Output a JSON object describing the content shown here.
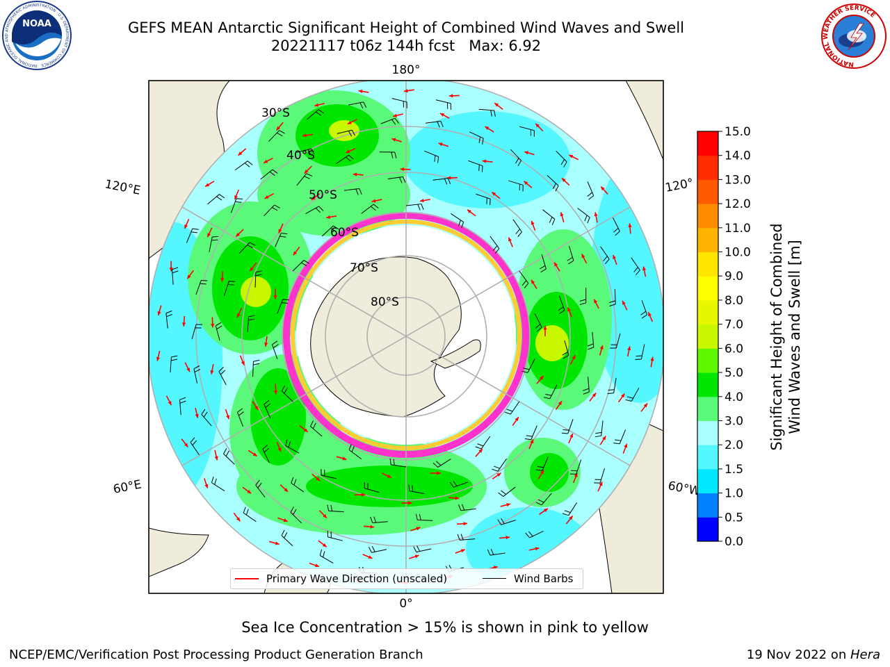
{
  "header": {
    "title_line1": "GEFS MEAN Antarctic Significant Height of Combined Wind Waves and Swell",
    "title_line2": "20221117 t06z 144h fcst   Max: 6.92"
  },
  "logos": {
    "left": {
      "icon": "noaa-logo-icon",
      "text": "NOAA",
      "ring_text": "NATIONAL OCEANIC AND ATMOSPHERIC ADMINISTRATION · U.S. DEPARTMENT OF COMMERCE"
    },
    "right": {
      "icon": "nws-logo-icon",
      "ring_text": "NATIONAL WEATHER SERVICE"
    }
  },
  "map": {
    "projection": "south-polar-stereographic",
    "longitude_labels": {
      "top": "180°",
      "bottom": "0°",
      "left_upper": "120°E",
      "left_lower": "60°E",
      "right_upper": "120°",
      "right_lower": "60°W"
    },
    "latitude_labels": [
      "30°S",
      "40°S",
      "50°S",
      "60°S",
      "70°S",
      "80°S"
    ],
    "wave_max_m": 6.92,
    "colors": {
      "land": "#efecdc",
      "ice_interior": "#ffffff",
      "ice_edge": [
        "#ff33cc",
        "#ffcc33"
      ],
      "wave_arrow": "#ff0000",
      "wind_barb": "#000000",
      "graticule": "#b0b0b0"
    }
  },
  "legend": {
    "wave_label": "Primary Wave Direction (unscaled)",
    "wind_label": "Wind Barbs",
    "wave_color": "#ff0000",
    "wind_color": "#000000"
  },
  "colorbar": {
    "label_line1": "Significant Height of Combined",
    "label_line2": "Wind Waves and Swell [m]",
    "ticks": [
      "0.0",
      "0.5",
      "1.0",
      "1.5",
      "2.0",
      "3.0",
      "4.0",
      "5.0",
      "6.0",
      "7.0",
      "8.0",
      "9.0",
      "10.0",
      "11.0",
      "12.0",
      "13.0",
      "14.0",
      "15.0"
    ],
    "colors": [
      "#0000ff",
      "#0080ff",
      "#00e8ff",
      "#55f7ff",
      "#aaffff",
      "#5af97a",
      "#00e600",
      "#5ff700",
      "#c8f700",
      "#e6f700",
      "#ffff00",
      "#ffe600",
      "#ffb400",
      "#ff8c00",
      "#ff5a00",
      "#ff2d00",
      "#ff0000"
    ]
  },
  "footer": {
    "note": "Sea Ice Concentration > 15% is shown in pink to yellow",
    "credit_left": "NCEP/EMC/Verification Post Processing Product Generation Branch",
    "credit_date": "19 Nov 2022 on ",
    "credit_host": "Hera"
  }
}
